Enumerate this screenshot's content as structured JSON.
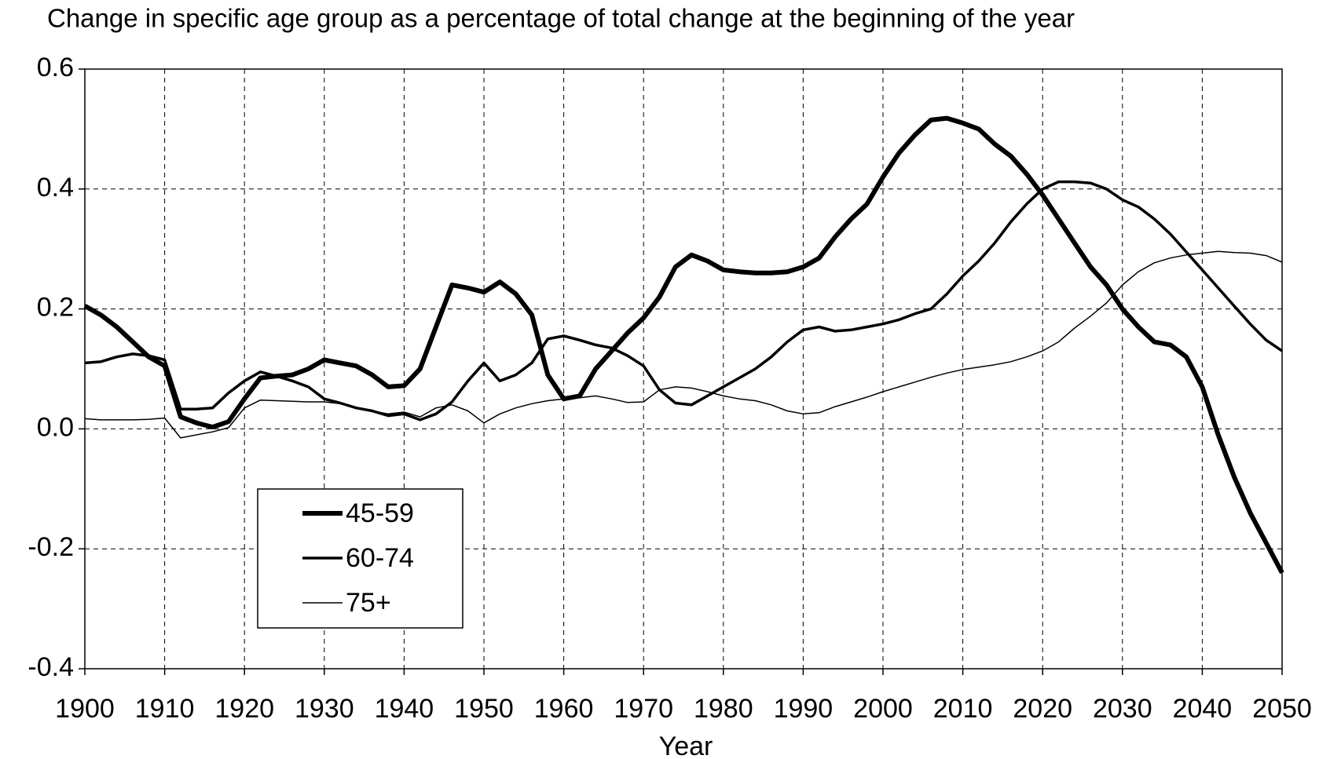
{
  "chart_data": {
    "type": "line",
    "title": "Change in specific age group as a percentage of total change at the beginning of the year",
    "x_label": "Year",
    "x": [
      1900,
      1902,
      1904,
      1906,
      1908,
      1910,
      1912,
      1914,
      1916,
      1918,
      1920,
      1922,
      1924,
      1926,
      1928,
      1930,
      1932,
      1934,
      1936,
      1938,
      1940,
      1942,
      1944,
      1946,
      1948,
      1950,
      1952,
      1954,
      1956,
      1958,
      1960,
      1962,
      1964,
      1966,
      1968,
      1970,
      1972,
      1974,
      1976,
      1978,
      1980,
      1982,
      1984,
      1986,
      1988,
      1990,
      1992,
      1994,
      1996,
      1998,
      2000,
      2002,
      2004,
      2006,
      2008,
      2010,
      2012,
      2014,
      2016,
      2018,
      2020,
      2022,
      2024,
      2026,
      2028,
      2030,
      2032,
      2034,
      2036,
      2038,
      2040,
      2042,
      2044,
      2046,
      2048,
      2050
    ],
    "series": [
      {
        "name": "45-59",
        "color": "#000000",
        "width": 6,
        "values": [
          0.205,
          0.19,
          0.17,
          0.145,
          0.12,
          0.105,
          0.02,
          0.01,
          0.003,
          0.012,
          0.05,
          0.085,
          0.088,
          0.09,
          0.1,
          0.115,
          0.11,
          0.105,
          0.09,
          0.07,
          0.072,
          0.1,
          0.17,
          0.24,
          0.235,
          0.228,
          0.245,
          0.225,
          0.19,
          0.09,
          0.05,
          0.055,
          0.1,
          0.13,
          0.16,
          0.185,
          0.22,
          0.27,
          0.29,
          0.28,
          0.265,
          0.262,
          0.26,
          0.26,
          0.262,
          0.27,
          0.285,
          0.32,
          0.35,
          0.375,
          0.42,
          0.46,
          0.49,
          0.515,
          0.518,
          0.51,
          0.5,
          0.475,
          0.455,
          0.425,
          0.39,
          0.35,
          0.31,
          0.27,
          0.24,
          0.2,
          0.17,
          0.145,
          0.14,
          0.12,
          0.07,
          -0.01,
          -0.08,
          -0.14,
          -0.19,
          -0.24
        ]
      },
      {
        "name": "60-74",
        "color": "#000000",
        "width": 3.5,
        "values": [
          0.11,
          0.112,
          0.12,
          0.125,
          0.122,
          0.115,
          0.033,
          0.033,
          0.035,
          0.06,
          0.08,
          0.095,
          0.088,
          0.08,
          0.07,
          0.05,
          0.043,
          0.035,
          0.03,
          0.022,
          0.025,
          0.015,
          0.025,
          0.045,
          0.08,
          0.11,
          0.08,
          0.09,
          0.11,
          0.15,
          0.155,
          0.148,
          0.14,
          0.135,
          0.122,
          0.105,
          0.065,
          0.043,
          0.04,
          0.055,
          0.07,
          0.085,
          0.1,
          0.12,
          0.145,
          0.165,
          0.17,
          0.163,
          0.165,
          0.17,
          0.175,
          0.182,
          0.192,
          0.2,
          0.225,
          0.255,
          0.28,
          0.31,
          0.345,
          0.375,
          0.4,
          0.412,
          0.412,
          0.41,
          0.4,
          0.382,
          0.37,
          0.35,
          0.325,
          0.295,
          0.265,
          0.235,
          0.205,
          0.175,
          0.148,
          0.13
        ]
      },
      {
        "name": "75+",
        "color": "#000000",
        "width": 1.5,
        "values": [
          0.017,
          0.015,
          0.015,
          0.015,
          0.016,
          0.018,
          -0.015,
          -0.01,
          -0.005,
          0.002,
          0.035,
          0.048,
          0.047,
          0.046,
          0.045,
          0.045,
          0.042,
          0.035,
          0.03,
          0.025,
          0.028,
          0.02,
          0.035,
          0.04,
          0.03,
          0.01,
          0.025,
          0.035,
          0.042,
          0.047,
          0.05,
          0.052,
          0.055,
          0.05,
          0.044,
          0.045,
          0.065,
          0.07,
          0.068,
          0.062,
          0.055,
          0.05,
          0.047,
          0.04,
          0.03,
          0.025,
          0.027,
          0.037,
          0.045,
          0.053,
          0.062,
          0.07,
          0.078,
          0.086,
          0.093,
          0.099,
          0.103,
          0.107,
          0.112,
          0.12,
          0.13,
          0.145,
          0.168,
          0.188,
          0.21,
          0.24,
          0.262,
          0.277,
          0.285,
          0.29,
          0.293,
          0.296,
          0.294,
          0.293,
          0.289,
          0.278
        ]
      }
    ],
    "xlim": [
      1900,
      2050
    ],
    "xticks": [
      1900,
      1910,
      1920,
      1930,
      1940,
      1950,
      1960,
      1970,
      1980,
      1990,
      2000,
      2010,
      2020,
      2030,
      2040,
      2050
    ],
    "ylim": [
      -0.4,
      0.6
    ],
    "yticks": [
      -0.4,
      -0.2,
      {
        "value": 0,
        "label": "0.0"
      },
      0.2,
      0.4,
      0.6
    ],
    "grid": true,
    "legend": "lower left"
  }
}
